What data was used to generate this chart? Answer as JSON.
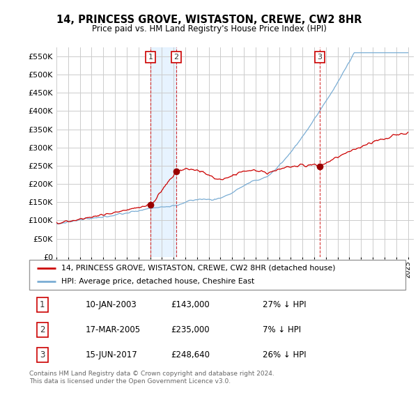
{
  "title": "14, PRINCESS GROVE, WISTASTON, CREWE, CW2 8HR",
  "subtitle": "Price paid vs. HM Land Registry's House Price Index (HPI)",
  "legend_label_red": "14, PRINCESS GROVE, WISTASTON, CREWE, CW2 8HR (detached house)",
  "legend_label_blue": "HPI: Average price, detached house, Cheshire East",
  "footnote": "Contains HM Land Registry data © Crown copyright and database right 2024.\nThis data is licensed under the Open Government Licence v3.0.",
  "transactions": [
    {
      "num": 1,
      "date": "10-JAN-2003",
      "price": 143000,
      "hpi_diff": "27% ↓ HPI",
      "year": 2003.04
    },
    {
      "num": 2,
      "date": "17-MAR-2005",
      "price": 235000,
      "hpi_diff": "7% ↓ HPI",
      "year": 2005.21
    },
    {
      "num": 3,
      "date": "15-JUN-2017",
      "price": 248640,
      "hpi_diff": "26% ↓ HPI",
      "year": 2017.46
    }
  ],
  "ylim": [
    0,
    575000
  ],
  "yticks": [
    0,
    50000,
    100000,
    150000,
    200000,
    250000,
    300000,
    350000,
    400000,
    450000,
    500000,
    550000
  ],
  "ytick_labels": [
    "£0",
    "£50K",
    "£100K",
    "£150K",
    "£200K",
    "£250K",
    "£300K",
    "£350K",
    "£400K",
    "£450K",
    "£500K",
    "£550K"
  ],
  "xlim_start": 1995.0,
  "xlim_end": 2025.5,
  "xticks": [
    1995,
    1996,
    1997,
    1998,
    1999,
    2000,
    2001,
    2002,
    2003,
    2004,
    2005,
    2006,
    2007,
    2008,
    2009,
    2010,
    2011,
    2012,
    2013,
    2014,
    2015,
    2016,
    2017,
    2018,
    2019,
    2020,
    2021,
    2022,
    2023,
    2024,
    2025
  ],
  "red_color": "#cc0000",
  "blue_color": "#7aadd4",
  "shade_color": "#ddeeff",
  "background_color": "#ffffff",
  "grid_color": "#cccccc",
  "marker_dot_color": "#990000"
}
